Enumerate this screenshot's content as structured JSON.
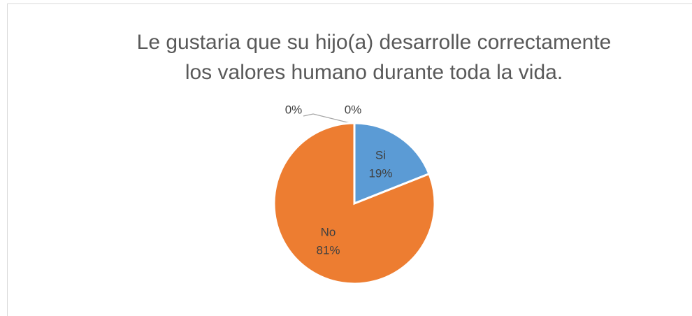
{
  "chart_data": {
    "type": "pie",
    "title": [
      "Le gustaria que su hijo(a) desarrolle correctamente",
      "los valores humano durante toda la vida."
    ],
    "categories": [
      "Si",
      "No",
      null,
      null
    ],
    "values": [
      19,
      81,
      0,
      0
    ],
    "value_labels": [
      "19%",
      "81%",
      "0%",
      "0%"
    ],
    "colors": [
      "#5b9bd5",
      "#ed7d31",
      "#a5a5a5",
      "#ffc000"
    ]
  }
}
